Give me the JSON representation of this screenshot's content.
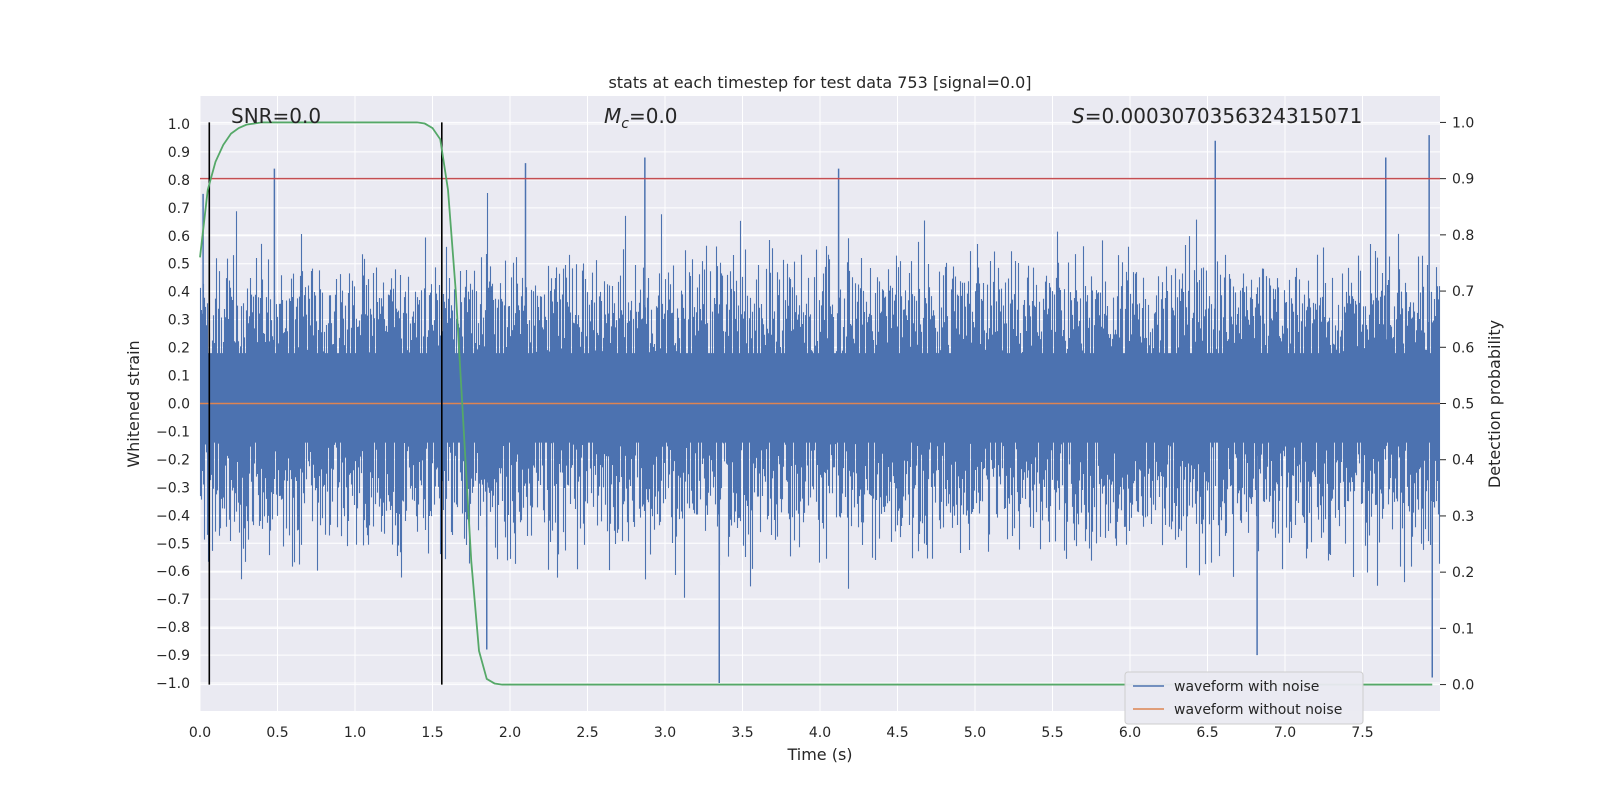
{
  "chart_data": {
    "type": "line",
    "title": "stats at each timestep for test data 753 [signal=0.0]",
    "xlabel": "Time (s)",
    "ylabel": "Whitened strain",
    "y2label": "Detection probability",
    "xlim": [
      0.0,
      8.0
    ],
    "ylim": [
      -1.1,
      1.1
    ],
    "y2lim": [
      -0.047,
      1.047
    ],
    "xticks": [
      0.0,
      0.5,
      1.0,
      1.5,
      2.0,
      2.5,
      3.0,
      3.5,
      4.0,
      4.5,
      5.0,
      5.5,
      6.0,
      6.5,
      7.0,
      7.5
    ],
    "xtick_labels": [
      "0.0",
      "0.5",
      "1.0",
      "1.5",
      "2.0",
      "2.5",
      "3.0",
      "3.5",
      "4.0",
      "4.5",
      "5.0",
      "5.5",
      "6.0",
      "6.5",
      "7.0",
      "7.5"
    ],
    "yticks": [
      1.0,
      0.9,
      0.8,
      0.7,
      0.6,
      0.5,
      0.4,
      0.3,
      0.2,
      0.1,
      0.0,
      -0.1,
      -0.2,
      -0.3,
      -0.4,
      -0.5,
      -0.6,
      -0.7,
      -0.8,
      -0.9,
      -1.0
    ],
    "ytick_labels": [
      "1.0",
      "0.9",
      "0.8",
      "0.7",
      "0.6",
      "0.5",
      "0.4",
      "0.3",
      "0.2",
      "0.1",
      "0.0",
      "−0.1",
      "−0.2",
      "−0.3",
      "−0.4",
      "−0.5",
      "−0.6",
      "−0.7",
      "−0.8",
      "−0.9",
      "−1.0"
    ],
    "y2ticks": [
      1.0,
      0.9,
      0.8,
      0.7,
      0.6,
      0.5,
      0.4,
      0.3,
      0.2,
      0.1,
      0.0
    ],
    "y2tick_labels": [
      "1.0",
      "0.9",
      "0.8",
      "0.7",
      "0.6",
      "0.5",
      "0.4",
      "0.3",
      "0.2",
      "0.1",
      "0.0"
    ],
    "annotations": {
      "snr": "SNR=0.0",
      "mc_symbol": "M",
      "mc_sub": "c",
      "mc_value": "=0.0",
      "s_symbol": "S",
      "s_value": "=0.0003070356324315071"
    },
    "series": [
      {
        "name": "waveform with noise",
        "color": "#4c72b0",
        "description": "noisy whitened strain, approx. symmetric about 0 with peaks up to ~0.95 and down to -1.0 over t in [0, 8]",
        "envelope_hint": {
          "typical_upper": 0.5,
          "typical_lower": -0.5,
          "max": 0.96,
          "min": -1.0
        }
      },
      {
        "name": "waveform without noise",
        "color": "#dd8452",
        "y_constant": 0.0
      },
      {
        "name": "detection probability",
        "color": "#55a868",
        "axis": "right",
        "x": [
          0.0,
          0.05,
          0.1,
          0.15,
          0.2,
          0.25,
          0.3,
          0.35,
          0.4,
          0.6,
          0.8,
          1.0,
          1.2,
          1.4,
          1.45,
          1.5,
          1.55,
          1.6,
          1.65,
          1.7,
          1.75,
          1.8,
          1.85,
          1.9,
          1.95,
          2.0,
          2.5,
          3.0,
          4.0,
          5.0,
          6.0,
          7.0,
          7.95
        ],
        "y": [
          0.76,
          0.88,
          0.93,
          0.96,
          0.98,
          0.99,
          0.996,
          0.998,
          1.0,
          1.0,
          1.0,
          1.0,
          1.0,
          1.0,
          0.998,
          0.99,
          0.97,
          0.88,
          0.7,
          0.46,
          0.22,
          0.06,
          0.01,
          0.002,
          0.0,
          0.0,
          0.0,
          0.0,
          0.0,
          0.0,
          0.0,
          0.0,
          0.0
        ]
      }
    ],
    "threshold_line": {
      "axis": "right",
      "y": 0.9,
      "color": "#c44e52"
    },
    "vertical_lines": [
      {
        "x": 0.06,
        "y_from": 0.0,
        "y_to": 1.0
      },
      {
        "x": 1.56,
        "y_from": 0.0,
        "y_to": 1.0
      }
    ],
    "legend": {
      "placement": "lower-right",
      "entries": [
        {
          "label": "waveform with noise",
          "color": "#4c72b0"
        },
        {
          "label": "waveform without noise",
          "color": "#dd8452"
        }
      ]
    },
    "style": {
      "background": "#eaeaf2",
      "grid": true,
      "grid_color": "#ffffff"
    }
  }
}
